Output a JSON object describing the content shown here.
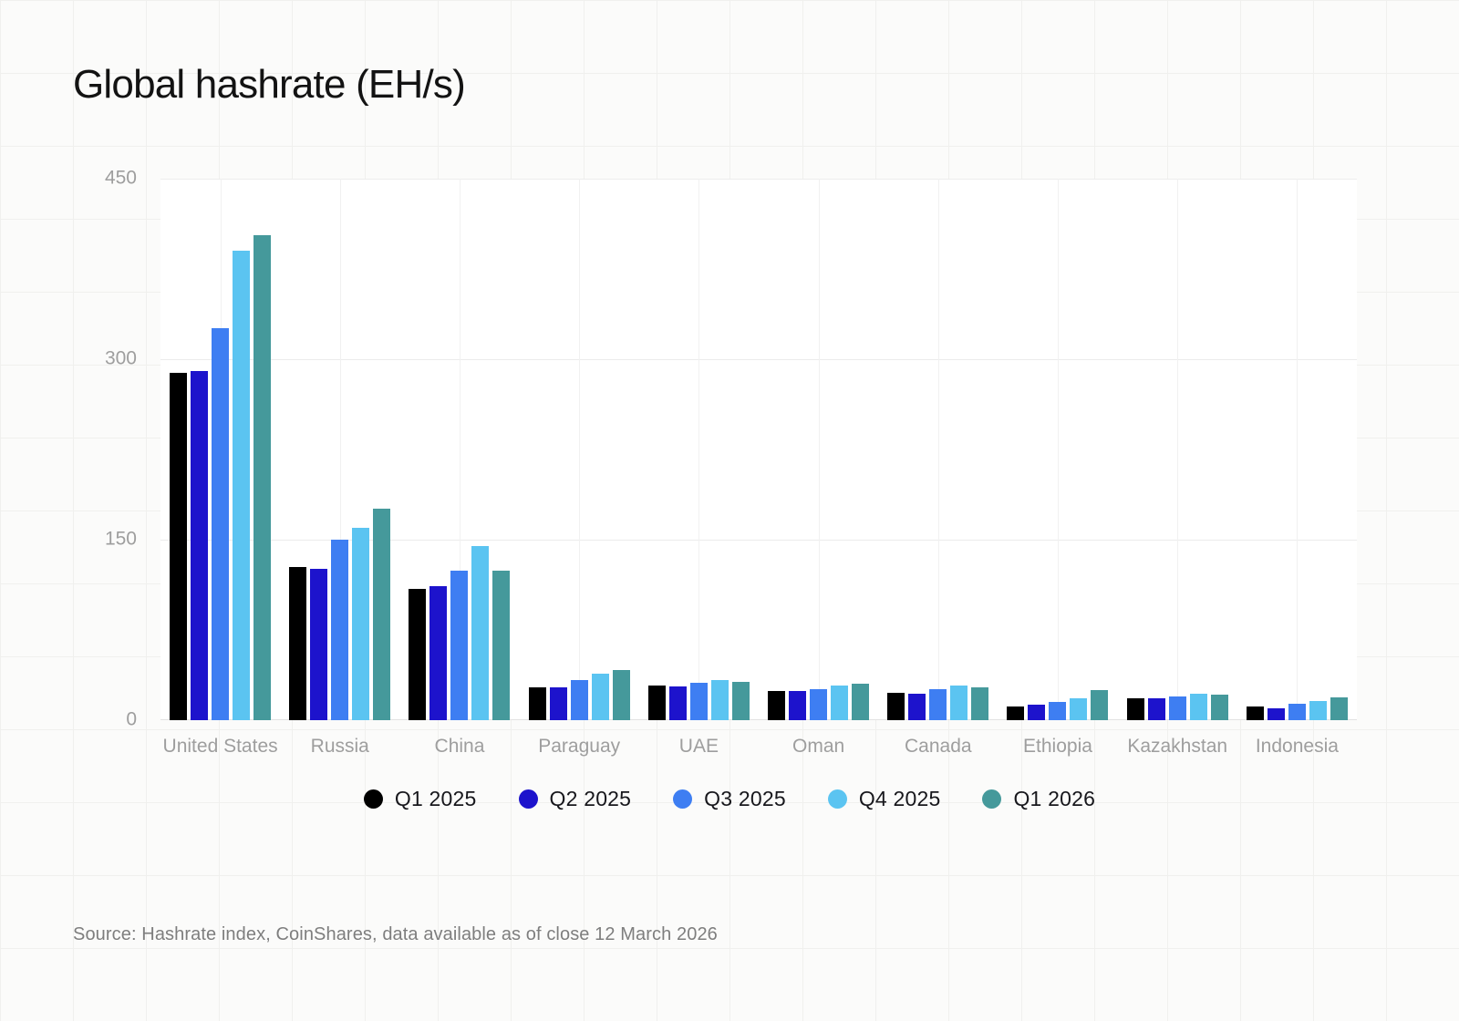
{
  "page": {
    "title": "Global hashrate (EH/s)",
    "source": "Source: Hashrate index, CoinShares, data available as of close 12 March 2026"
  },
  "chart_data": {
    "type": "bar",
    "title": "Global hashrate (EH/s)",
    "ylabel": "EH/s",
    "ylim": [
      0,
      450
    ],
    "yticks": [
      0,
      150,
      300,
      450
    ],
    "grid": "horizontal lines at yticks; faint vertical line at each category center",
    "legend_position": "bottom",
    "categories": [
      "United States",
      "Russia",
      "China",
      "Paraguay",
      "UAE",
      "Oman",
      "Canada",
      "Ethiopia",
      "Kazakhstan",
      "Indonesia"
    ],
    "series": [
      {
        "name": "Q1 2025",
        "color": "#000000",
        "values": [
          289,
          127,
          109,
          27,
          29,
          24,
          23,
          11,
          18,
          11
        ]
      },
      {
        "name": "Q2 2025",
        "color": "#1d13cc",
        "values": [
          290,
          126,
          111,
          27,
          28,
          24,
          22,
          13,
          18,
          10
        ]
      },
      {
        "name": "Q3 2025",
        "color": "#3e7ef2",
        "values": [
          326,
          150,
          124,
          33,
          31,
          26,
          26,
          15,
          20,
          14
        ]
      },
      {
        "name": "Q4 2025",
        "color": "#5bc4f1",
        "values": [
          390,
          160,
          145,
          39,
          33,
          29,
          29,
          18,
          22,
          16
        ]
      },
      {
        "name": "Q1 2026",
        "color": "#45999b",
        "values": [
          403,
          176,
          124,
          42,
          32,
          30,
          27,
          25,
          21,
          19
        ]
      }
    ]
  }
}
